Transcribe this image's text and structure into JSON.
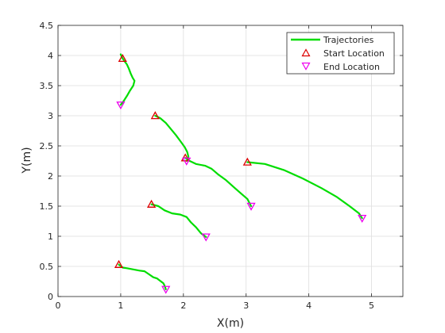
{
  "chart_data": {
    "type": "line",
    "title": "",
    "xlabel": "X(m)",
    "ylabel": "Y(m)",
    "xlim": [
      0,
      5.5
    ],
    "ylim": [
      0,
      4.5
    ],
    "xticks": [
      "0",
      "1",
      "2",
      "3",
      "4",
      "5"
    ],
    "yticks": [
      "0",
      "0.5",
      "1",
      "1.5",
      "2",
      "2.5",
      "3",
      "3.5",
      "4",
      "4.5"
    ],
    "grid": true,
    "legend": {
      "placement": "top-right",
      "entries": [
        "Trajectories",
        "Start Location",
        "End Location"
      ]
    },
    "colors": {
      "trajectory": "#00dd00",
      "start": "#dd0000",
      "end": "#ee00ee"
    },
    "series": [
      {
        "x": [
          1.03,
          1.0,
          1.02,
          1.05,
          1.1,
          1.13,
          1.16,
          1.19,
          1.22,
          1.2,
          1.15,
          1.1,
          1.05,
          1.0
        ],
        "y": [
          3.95,
          4.02,
          3.97,
          3.92,
          3.85,
          3.78,
          3.7,
          3.63,
          3.58,
          3.5,
          3.42,
          3.33,
          3.25,
          3.18
        ]
      },
      {
        "x": [
          1.55,
          1.63,
          1.72,
          1.8,
          1.88,
          1.95,
          2.02,
          2.06,
          2.08,
          2.07,
          2.05
        ],
        "y": [
          3.0,
          2.96,
          2.88,
          2.78,
          2.68,
          2.58,
          2.48,
          2.4,
          2.32,
          2.27,
          2.25
        ]
      },
      {
        "x": [
          2.03,
          2.1,
          2.2,
          2.35,
          2.45,
          2.55,
          2.68,
          2.82,
          2.93,
          3.02,
          3.08
        ],
        "y": [
          2.3,
          2.25,
          2.2,
          2.17,
          2.12,
          2.03,
          1.93,
          1.8,
          1.7,
          1.62,
          1.5
        ]
      },
      {
        "x": [
          3.02,
          3.3,
          3.6,
          3.9,
          4.2,
          4.45,
          4.65,
          4.8,
          4.85
        ],
        "y": [
          2.23,
          2.2,
          2.1,
          1.96,
          1.8,
          1.65,
          1.5,
          1.38,
          1.3
        ]
      },
      {
        "x": [
          1.49,
          1.6,
          1.7,
          1.82,
          1.95,
          2.05,
          2.12,
          2.2,
          2.28,
          2.36
        ],
        "y": [
          1.53,
          1.5,
          1.43,
          1.38,
          1.36,
          1.32,
          1.23,
          1.15,
          1.05,
          0.99
        ]
      },
      {
        "x": [
          0.97,
          1.03,
          1.1,
          1.2,
          1.3,
          1.38,
          1.45,
          1.52,
          1.58,
          1.63,
          1.68,
          1.7,
          1.72
        ],
        "y": [
          0.53,
          0.48,
          0.47,
          0.45,
          0.43,
          0.42,
          0.37,
          0.32,
          0.3,
          0.26,
          0.22,
          0.18,
          0.12
        ]
      }
    ],
    "start_points": {
      "x": [
        1.03,
        1.55,
        2.03,
        3.02,
        1.49,
        0.97
      ],
      "y": [
        3.95,
        3.0,
        2.3,
        2.23,
        1.53,
        0.53
      ]
    },
    "end_points": {
      "x": [
        1.0,
        2.05,
        3.08,
        4.85,
        2.36,
        1.72
      ],
      "y": [
        3.18,
        2.25,
        1.5,
        1.3,
        0.99,
        0.12
      ]
    }
  }
}
